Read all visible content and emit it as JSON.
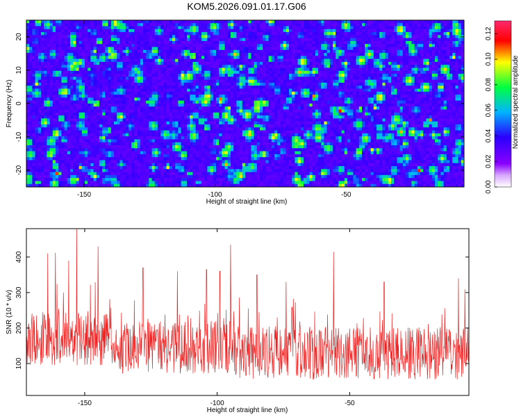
{
  "title": "KOM5.2026.091.01.17.G06",
  "colors": {
    "snr_line": "#ee2222",
    "background": "#ffffff",
    "axis": "#000000"
  },
  "chart_data": [
    {
      "type": "heatmap",
      "xlabel": "Height of straight line (km)",
      "ylabel": "Frequency (Hz)",
      "xlim": [
        -172,
        -5
      ],
      "ylim": [
        -25,
        25
      ],
      "x_ticks": [
        -150,
        -100,
        -50
      ],
      "y_ticks": [
        20,
        10,
        0,
        -10,
        -20
      ],
      "colorbar": {
        "label": "Normalized spectral amplitude",
        "range": [
          0,
          0.13
        ],
        "ticks": [
          "0.00",
          "0.02",
          "0.04",
          "0.06",
          "0.08",
          "0.10",
          "0.12"
        ],
        "colormap": [
          "#ffffff",
          "#8a00ff",
          "#2a00ff",
          "#00b4ff",
          "#00ff40",
          "#ffff00",
          "#ff0000",
          "#ff2a6e"
        ]
      },
      "hotspots": [
        {
          "x": -160,
          "y": -21,
          "value": 0.12
        },
        {
          "x": -154,
          "y": 18,
          "value": 0.11
        },
        {
          "x": -168,
          "y": 6,
          "value": 0.1
        },
        {
          "x": -145,
          "y": 0,
          "value": 0.1
        },
        {
          "x": -118,
          "y": -19,
          "value": 0.1
        },
        {
          "x": -98,
          "y": 1,
          "value": 0.12
        },
        {
          "x": -84,
          "y": 0,
          "value": 0.12
        },
        {
          "x": -62,
          "y": 2,
          "value": 0.12
        },
        {
          "x": -52,
          "y": -2,
          "value": 0.13
        },
        {
          "x": -70,
          "y": 3,
          "value": 0.1
        },
        {
          "x": -40,
          "y": -14,
          "value": 0.1
        },
        {
          "x": -22,
          "y": -20,
          "value": 0.12
        },
        {
          "x": -18,
          "y": -5,
          "value": 0.11
        },
        {
          "x": -9,
          "y": 14,
          "value": 0.1
        },
        {
          "x": -30,
          "y": 11,
          "value": 0.09
        },
        {
          "x": -130,
          "y": 10,
          "value": 0.09
        }
      ]
    },
    {
      "type": "line",
      "xlabel": "Height of straight line (km)",
      "ylabel": "SNR (10 * v/v)",
      "xlim": [
        -172,
        -5
      ],
      "ylim": [
        10,
        480
      ],
      "x_ticks": [
        -150,
        -100,
        -50
      ],
      "y_ticks": [
        100,
        200,
        300,
        400
      ],
      "n_points": 1100,
      "baseline_mean": 130,
      "peaks": [
        {
          "x": -164,
          "y": 410
        },
        {
          "x": -161,
          "y": 412
        },
        {
          "x": -156,
          "y": 390
        },
        {
          "x": -153,
          "y": 480
        },
        {
          "x": -145,
          "y": 430
        },
        {
          "x": -128,
          "y": 370
        },
        {
          "x": -115,
          "y": 360
        },
        {
          "x": -104,
          "y": 365
        },
        {
          "x": -99,
          "y": 360
        },
        {
          "x": -95,
          "y": 435
        },
        {
          "x": -85,
          "y": 350
        },
        {
          "x": -74,
          "y": 330
        },
        {
          "x": -56,
          "y": 415
        },
        {
          "x": -37,
          "y": 330
        },
        {
          "x": -9,
          "y": 340
        }
      ]
    }
  ]
}
